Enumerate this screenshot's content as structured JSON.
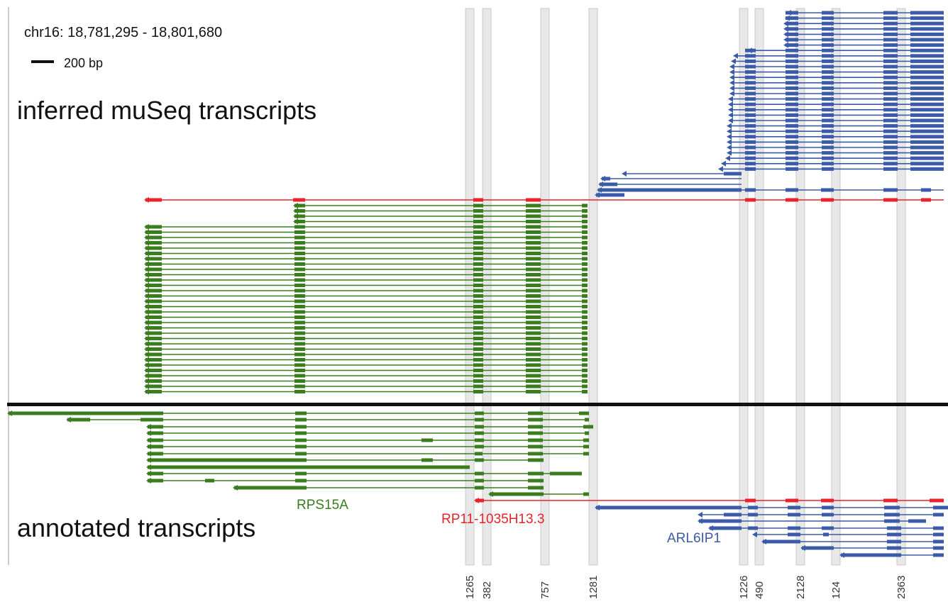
{
  "header": {
    "location": "chr16: 18,781,295 - 18,801,680",
    "scale": "200 bp"
  },
  "sections": {
    "inferred": "inferred muSeq transcripts",
    "annotated": "annotated transcripts"
  },
  "genes": {
    "green": "RPS15A",
    "red": "RP11-1035H13.3",
    "blue": "ARL6IP1"
  },
  "junctions": [
    1265,
    382,
    757,
    1281,
    1226,
    490,
    2128,
    124,
    2363
  ]
}
